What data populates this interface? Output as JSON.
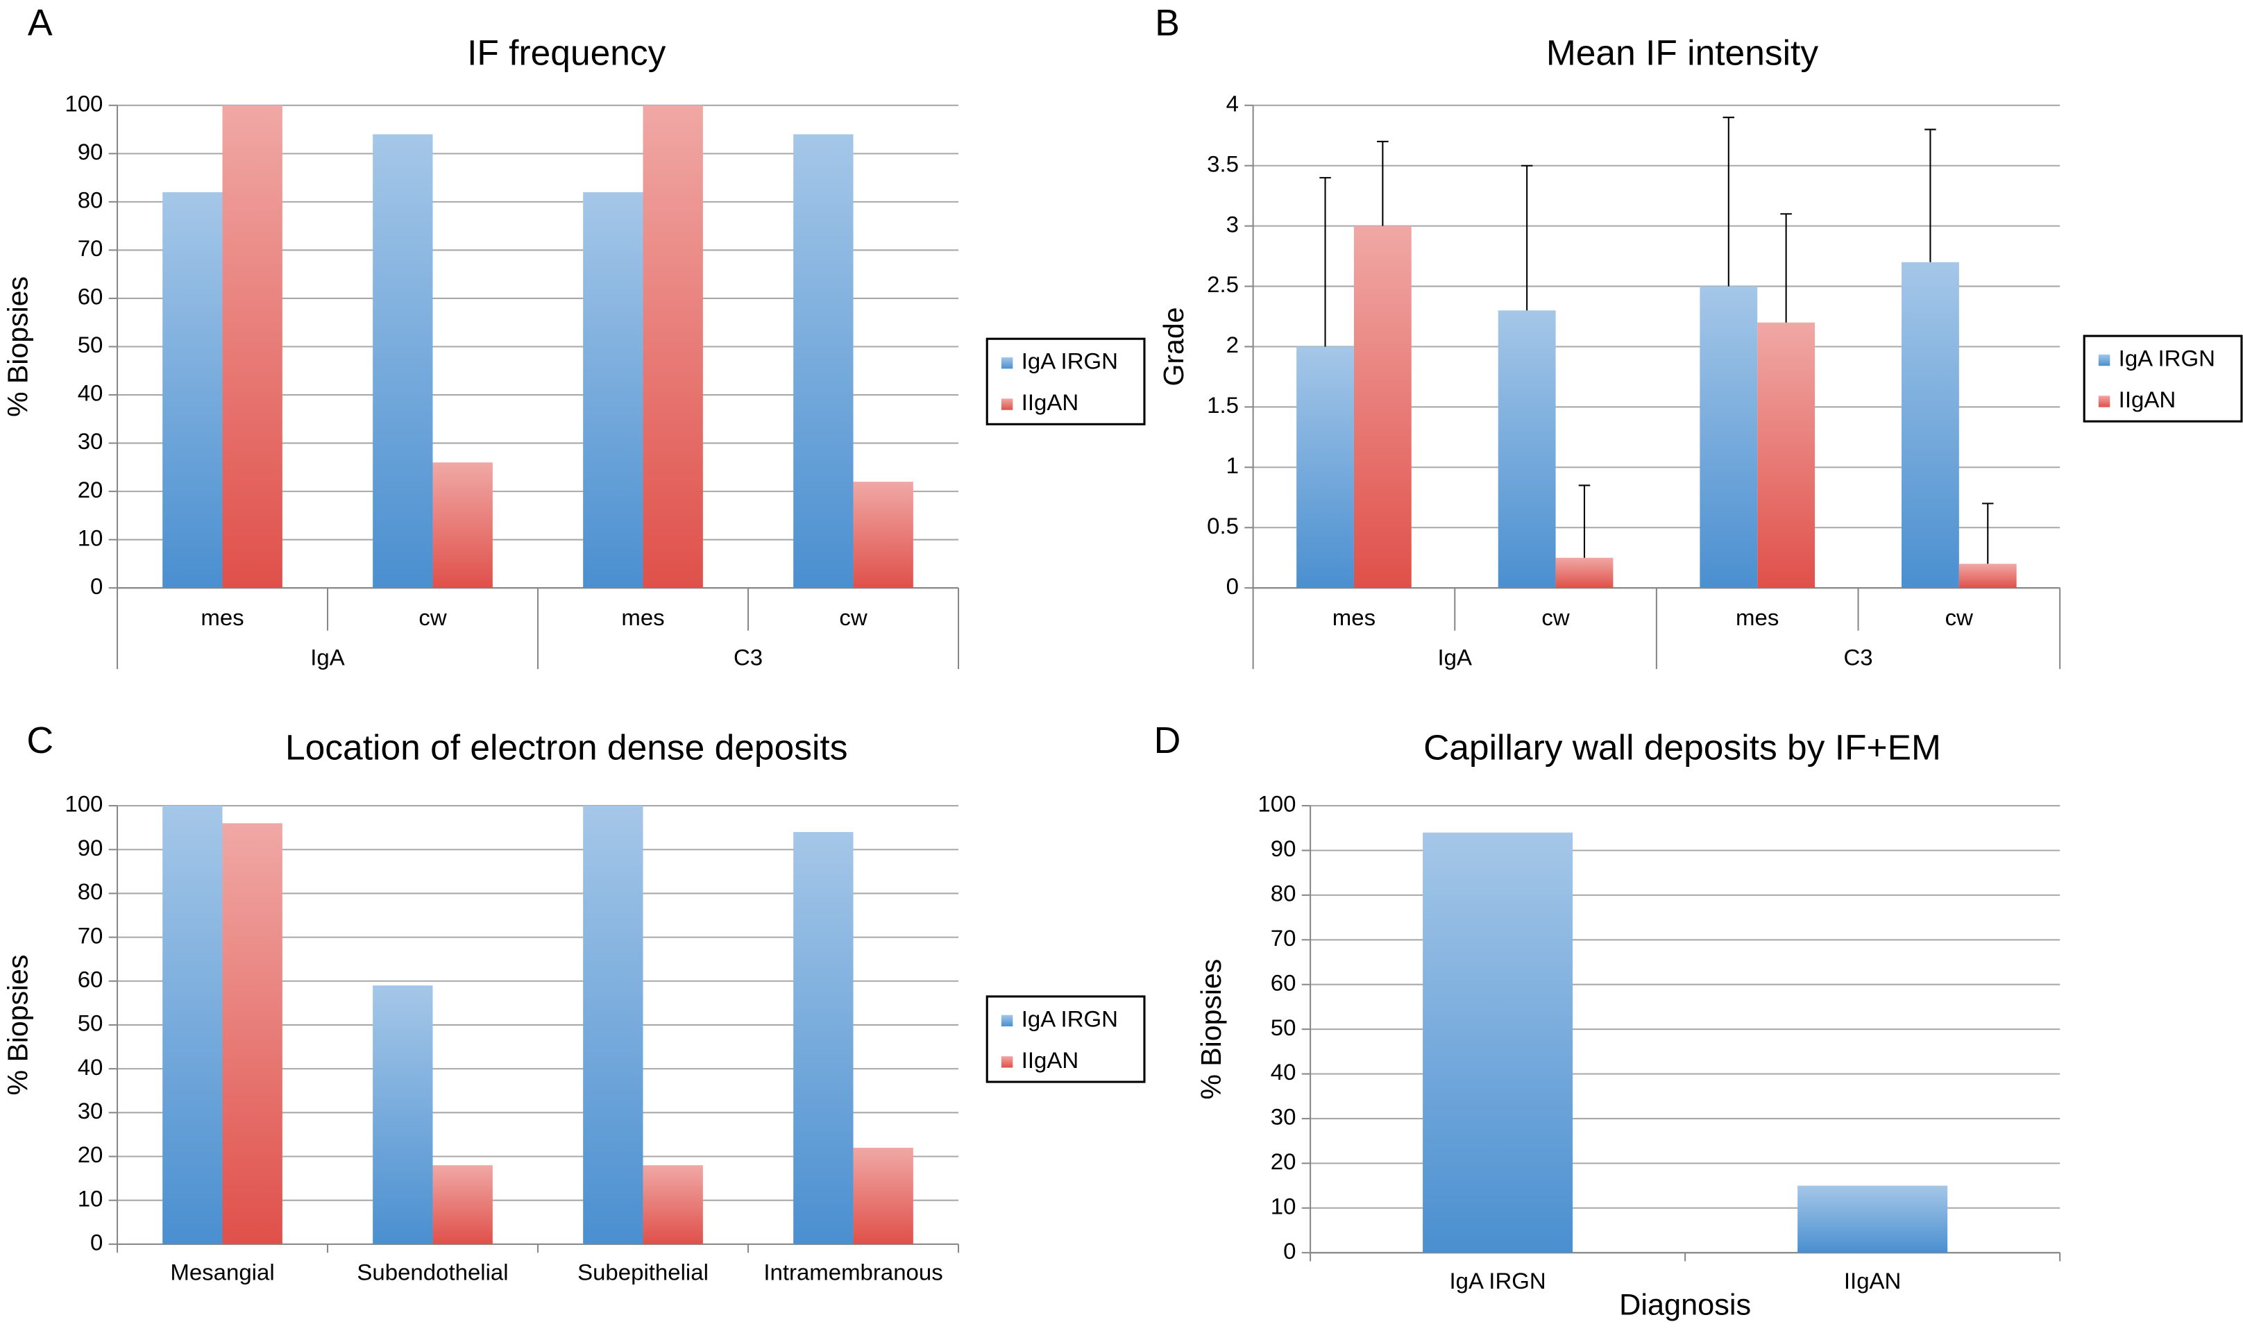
{
  "chart_data": [
    {
      "type": "bar",
      "panel": "A",
      "title": "IF frequency",
      "y_label": "% Biopsies",
      "categories": [
        "mes",
        "cw",
        "mes",
        "cw"
      ],
      "group_labels": [
        "IgA",
        "C3"
      ],
      "series": [
        {
          "name": "IgA IRGN",
          "color": "#4a8fd0",
          "values": [
            82,
            94,
            82,
            94
          ]
        },
        {
          "name": "IIgAN",
          "color": "#e0504a",
          "values": [
            100,
            26,
            100,
            22
          ]
        }
      ],
      "ylim": [
        0,
        100
      ],
      "yticks": [
        0,
        10,
        20,
        30,
        40,
        50,
        60,
        70,
        80,
        90,
        100
      ],
      "grid": true,
      "legend": "right"
    },
    {
      "type": "bar",
      "panel": "B",
      "title": "Mean IF intensity",
      "y_label": "Grade",
      "categories": [
        "mes",
        "cw",
        "mes",
        "cw"
      ],
      "group_labels": [
        "IgA",
        "C3"
      ],
      "series": [
        {
          "name": "IgA IRGN",
          "color": "#4a8fd0",
          "values": [
            2,
            2.3,
            2.5,
            2.7
          ],
          "errors": [
            1.4,
            1.2,
            1.4,
            1.1
          ]
        },
        {
          "name": "IIgAN",
          "color": "#e0504a",
          "values": [
            3,
            0.25,
            2.2,
            0.2
          ],
          "errors": [
            0.7,
            0.6,
            0.9,
            0.5
          ]
        }
      ],
      "ylim": [
        0,
        4
      ],
      "yticks": [
        0,
        0.5,
        1,
        1.5,
        2,
        2.5,
        3,
        3.5,
        4
      ],
      "grid": true,
      "legend": "right"
    },
    {
      "type": "bar",
      "panel": "C",
      "title": "Location of electron dense deposits",
      "y_label": "% Biopsies",
      "categories": [
        "Mesangial",
        "Subendothelial",
        "Subepithelial",
        "Intramembranous"
      ],
      "series": [
        {
          "name": "IgA IRGN",
          "color": "#4a8fd0",
          "values": [
            100,
            59,
            100,
            94
          ]
        },
        {
          "name": "IIgAN",
          "color": "#e0504a",
          "values": [
            96,
            18,
            18,
            22
          ]
        }
      ],
      "ylim": [
        0,
        100
      ],
      "yticks": [
        0,
        10,
        20,
        30,
        40,
        50,
        60,
        70,
        80,
        90,
        100
      ],
      "grid": true,
      "legend": "right"
    },
    {
      "type": "bar",
      "panel": "D",
      "title": "Capillary wall deposits by IF+EM",
      "y_label": "% Biopsies",
      "x_label": "Diagnosis",
      "categories": [
        "IgA IRGN",
        "IIgAN"
      ],
      "values": [
        94,
        15
      ],
      "color": "#4a8fd0",
      "ylim": [
        0,
        100
      ],
      "yticks": [
        0,
        10,
        20,
        30,
        40,
        50,
        60,
        70,
        80,
        90,
        100
      ],
      "grid": true
    }
  ]
}
